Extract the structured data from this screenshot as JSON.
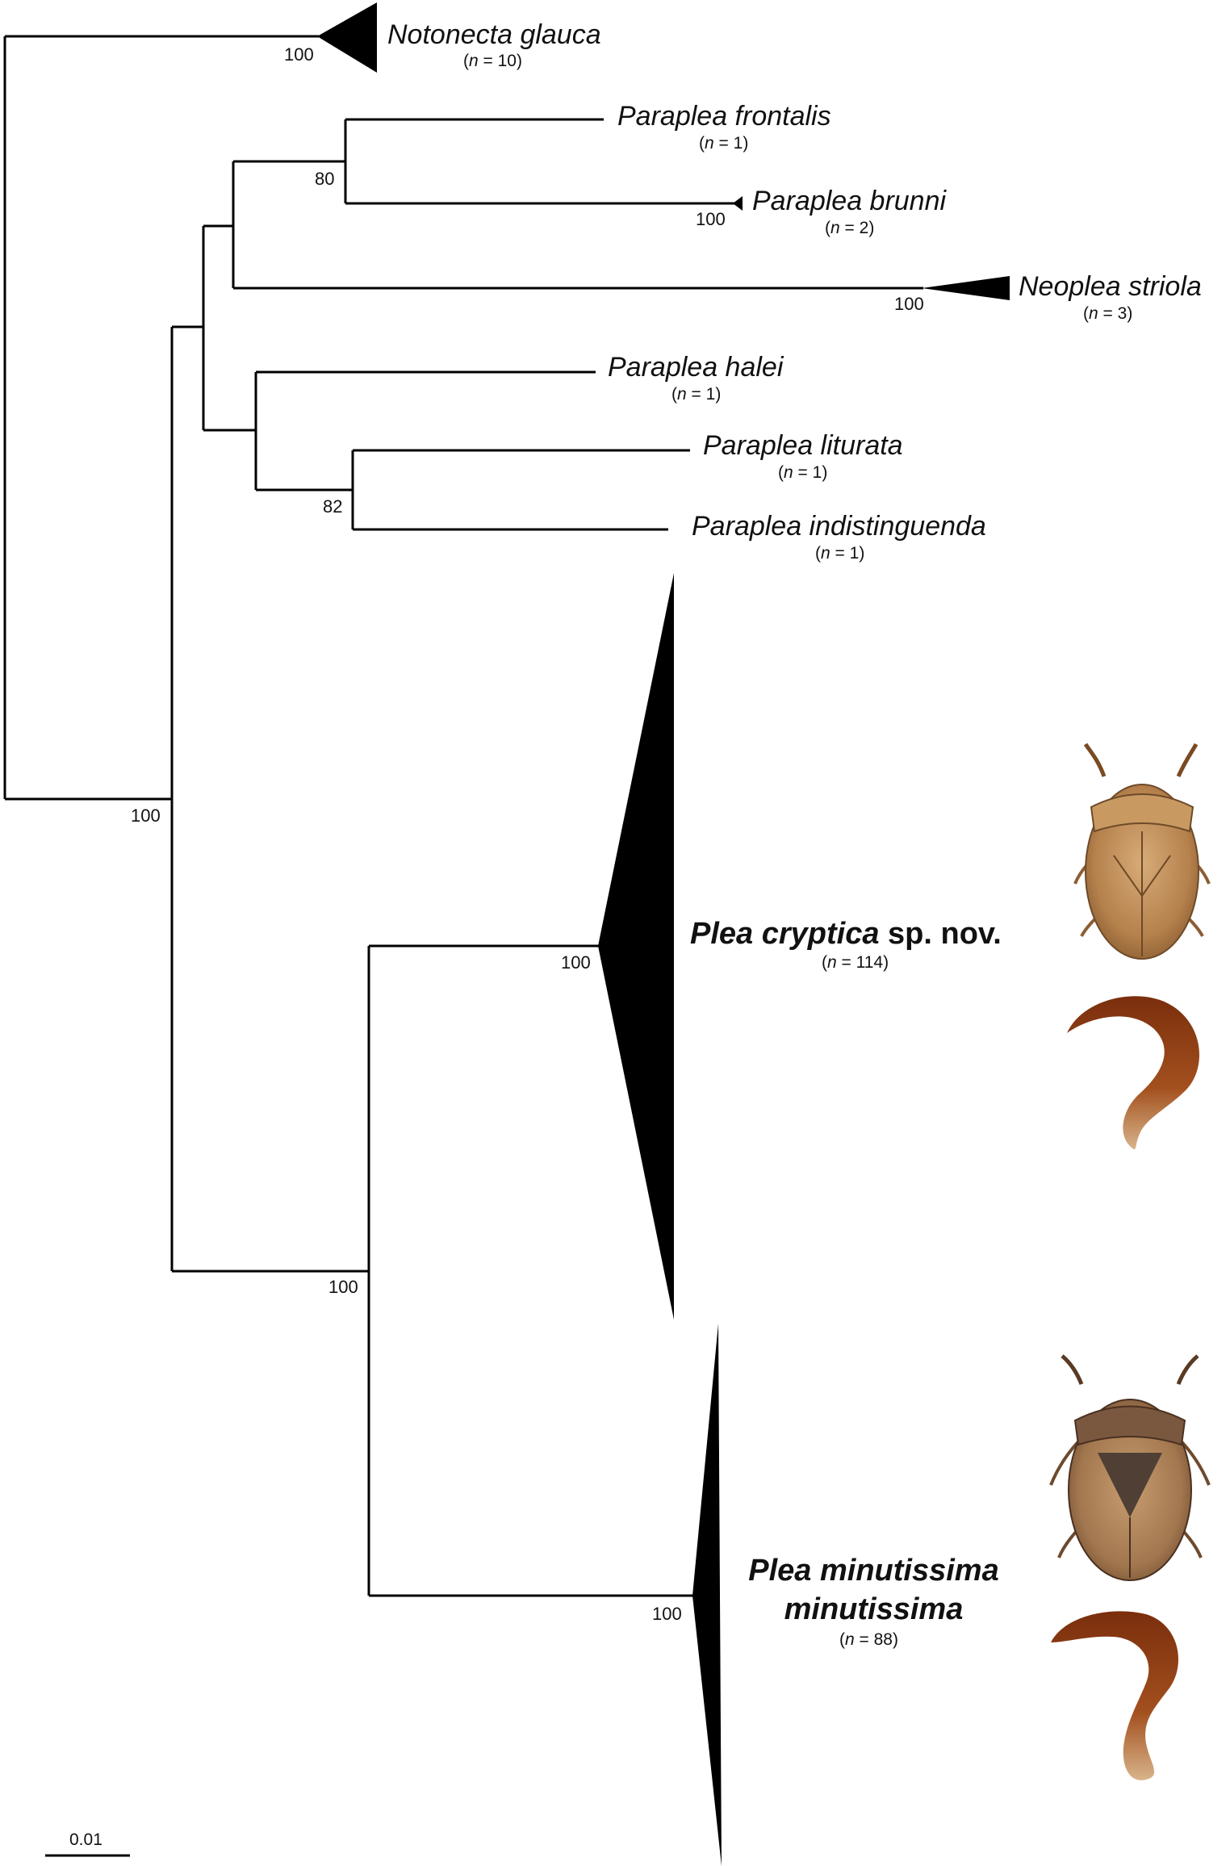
{
  "taxa": {
    "notonecta": {
      "name": "Notonecta glauca",
      "n": "10"
    },
    "frontalis": {
      "name": "Paraplea frontalis",
      "n": "1"
    },
    "brunni": {
      "name": "Paraplea brunni",
      "n": "2"
    },
    "neoplea": {
      "name": "Neoplea striola",
      "n": "3"
    },
    "halei": {
      "name": "Paraplea halei",
      "n": "1"
    },
    "liturata": {
      "name": "Paraplea liturata",
      "n": "1"
    },
    "indistinguenda": {
      "name": "Paraplea indistinguenda",
      "n": "1"
    },
    "cryptica": {
      "name_italic": "Plea cryptica",
      "name_suffix": " sp. nov.",
      "n": "114"
    },
    "minutissima": {
      "line1": "Plea minutissima",
      "line2": "minutissima",
      "n": "88"
    }
  },
  "count_prefix": "n",
  "count_eq": " = ",
  "support": {
    "notonecta": "100",
    "frontalis_brunni": "80",
    "brunni": "100",
    "neoplea": "100",
    "liturata_indistinguenda": "82",
    "root": "100",
    "cryptica": "100",
    "plea": "100",
    "minutissima": "100"
  },
  "scale_bar": "0.01",
  "colors": {
    "line": "#000000",
    "beetle": "#b07a45",
    "genitalia": "#8a3a12"
  }
}
